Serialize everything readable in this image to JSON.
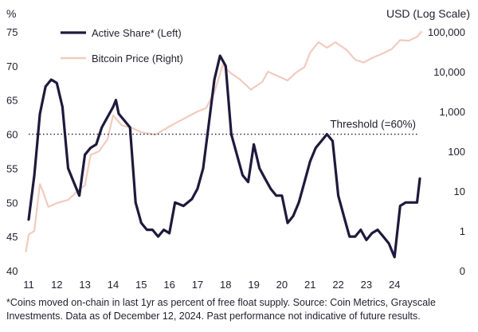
{
  "chart_data": {
    "type": "line",
    "left_unit_label": "%",
    "right_unit_label": "USD (Log Scale)",
    "x_ticks": [
      "11",
      "12",
      "13",
      "14",
      "15",
      "16",
      "17",
      "18",
      "19",
      "20",
      "21",
      "22",
      "23",
      "24"
    ],
    "x_domain": [
      2011,
      2024.9
    ],
    "y_left_ticks": [
      75,
      70,
      65,
      60,
      55,
      50,
      45,
      40
    ],
    "ylim_left": [
      40,
      75
    ],
    "y_right_ticks": [
      "100,000",
      "10,000",
      "1,000",
      "100",
      "10",
      "1",
      "0"
    ],
    "y_right_tick_values": [
      100000,
      10000,
      1000,
      100,
      10,
      1,
      0.1
    ],
    "ylim_right_log": [
      0.1,
      100000
    ],
    "threshold": {
      "label": "Threshold (=60%)",
      "value": 60
    },
    "series": [
      {
        "name": "Active Share* (Left)",
        "axis": "left",
        "color": "#1e1a3c",
        "x": [
          2011.0,
          2011.2,
          2011.4,
          2011.6,
          2011.8,
          2012.0,
          2012.2,
          2012.4,
          2012.6,
          2012.8,
          2013.0,
          2013.2,
          2013.4,
          2013.6,
          2013.8,
          2014.0,
          2014.1,
          2014.2,
          2014.4,
          2014.6,
          2014.8,
          2015.0,
          2015.2,
          2015.4,
          2015.6,
          2015.8,
          2016.0,
          2016.2,
          2016.5,
          2016.8,
          2017.0,
          2017.2,
          2017.4,
          2017.6,
          2017.8,
          2018.0,
          2018.2,
          2018.4,
          2018.6,
          2018.8,
          2019.0,
          2019.2,
          2019.4,
          2019.6,
          2019.8,
          2020.0,
          2020.2,
          2020.4,
          2020.6,
          2020.8,
          2021.0,
          2021.2,
          2021.4,
          2021.6,
          2021.8,
          2022.0,
          2022.2,
          2022.4,
          2022.6,
          2022.8,
          2023.0,
          2023.2,
          2023.4,
          2023.6,
          2023.8,
          2024.0,
          2024.2,
          2024.4,
          2024.6,
          2024.8,
          2024.9
        ],
        "values": [
          47.5,
          54,
          63,
          67,
          68,
          67.5,
          64,
          55,
          53,
          51,
          57,
          58,
          58.5,
          61,
          62.5,
          64,
          65,
          63,
          62,
          61,
          50,
          47,
          46,
          46,
          45,
          46,
          45.5,
          50,
          49.5,
          50.5,
          52,
          55,
          61.5,
          68,
          71.5,
          70,
          60,
          57,
          54,
          53,
          58.5,
          55,
          53.5,
          52,
          51,
          51,
          47,
          48,
          50,
          53,
          56,
          58,
          59,
          60,
          59,
          51,
          48,
          45,
          45,
          46,
          44.5,
          45.5,
          46,
          45,
          44,
          42,
          49.5,
          50,
          50,
          50,
          53.5
        ]
      },
      {
        "name": "Bitcoin Price (Right)",
        "axis": "right",
        "color": "#f2cbbd",
        "x": [
          2010.9,
          2011.0,
          2011.2,
          2011.4,
          2011.5,
          2011.7,
          2012.0,
          2012.4,
          2012.8,
          2013.0,
          2013.2,
          2013.5,
          2013.8,
          2014.0,
          2014.3,
          2014.7,
          2015.0,
          2015.5,
          2016.0,
          2016.5,
          2017.0,
          2017.3,
          2017.6,
          2017.9,
          2018.0,
          2018.2,
          2018.5,
          2018.9,
          2019.0,
          2019.3,
          2019.5,
          2019.9,
          2020.2,
          2020.5,
          2020.8,
          2021.0,
          2021.3,
          2021.6,
          2021.9,
          2022.3,
          2022.6,
          2022.9,
          2023.2,
          2023.6,
          2023.9,
          2024.2,
          2024.5,
          2024.8,
          2024.95
        ],
        "values": [
          0.3,
          0.8,
          1,
          15,
          10,
          4,
          5,
          6,
          11,
          14,
          80,
          100,
          200,
          800,
          450,
          380,
          300,
          260,
          420,
          650,
          1000,
          1200,
          3000,
          15000,
          12000,
          9000,
          6500,
          3500,
          4000,
          5500,
          10000,
          7500,
          6000,
          9500,
          13000,
          30000,
          55000,
          40000,
          55000,
          35000,
          20000,
          17000,
          22000,
          29000,
          37000,
          62000,
          60000,
          75000,
          100000
        ]
      }
    ],
    "footnote": [
      "*Coins moved on-chain in last 1yr as percent of free float supply. Source: Coin Metrics, Grayscale",
      "Investments. Data as of December 12, 2024. Past performance not indicative of future results."
    ]
  }
}
